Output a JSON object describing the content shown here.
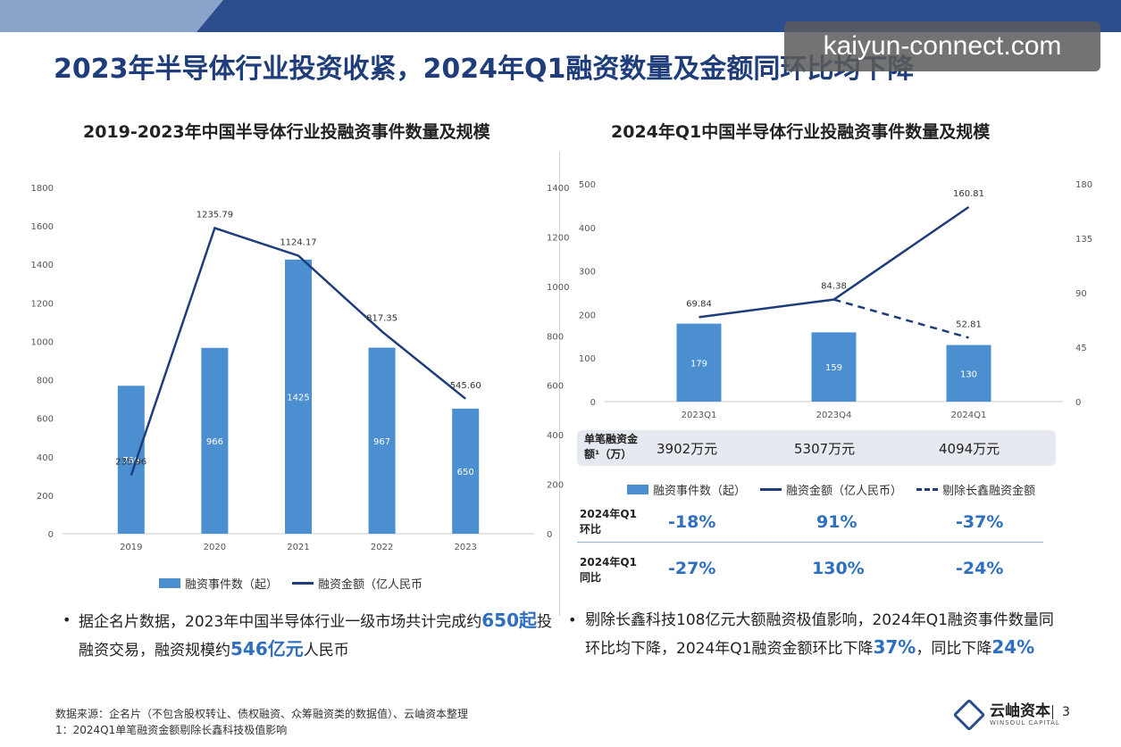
{
  "header": {
    "title": "2023年半导体行业投资收紧，2024年Q1融资数量及金额同环比均下降",
    "watermark_url": "kaiyun-connect.com"
  },
  "left_chart_title": "2019-2023年中国半导体行业投融资事件数量及规模",
  "right_chart_title": "2024年Q1中国半导体行业投融资事件数量及规模",
  "chart_data": [
    {
      "type": "bar",
      "title": "2019-2023年中国半导体行业投融资事件数量及规模",
      "categories": [
        "2019",
        "2020",
        "2021",
        "2022",
        "2023"
      ],
      "series": [
        {
          "name": "融资事件数（起）",
          "type": "bar",
          "axis": "left",
          "values": [
            769,
            966,
            1425,
            967,
            650
          ],
          "labels": [
            "769",
            "966",
            "1425",
            "967",
            "650"
          ]
        },
        {
          "name": "融资金额（亿人民币",
          "type": "line",
          "axis": "right",
          "values": [
            235.96,
            1235.79,
            1124.17,
            817.35,
            545.6
          ],
          "labels": [
            "235.96",
            "1235.79",
            "1124.17",
            "817.35",
            "545.60"
          ]
        }
      ],
      "y_left_ticks": [
        "0",
        "200",
        "400",
        "600",
        "800",
        "1000",
        "1200",
        "1400",
        "1600",
        "1800"
      ],
      "y_left_lim": [
        0,
        1800
      ],
      "y_right_ticks": [
        "0",
        "200",
        "400",
        "600",
        "800",
        "1000",
        "1200",
        "1400"
      ],
      "y_right_lim": [
        0,
        1400
      ],
      "legend": {
        "bar": "融资事件数（起）",
        "line": "融资金额（亿人民币"
      },
      "colors": {
        "bar": "#4b8fd0",
        "line": "#1e3d7a"
      }
    },
    {
      "type": "bar",
      "title": "2024年Q1中国半导体行业投融资事件数量及规模",
      "categories": [
        "2023Q1",
        "2023Q4",
        "2024Q1"
      ],
      "series": [
        {
          "name": "融资事件数（起）",
          "type": "bar",
          "axis": "left",
          "values": [
            179,
            159,
            130
          ],
          "labels": [
            "179",
            "159",
            "130"
          ]
        },
        {
          "name": "融资金额（亿人民币）",
          "type": "line",
          "axis": "right",
          "values": [
            69.84,
            84.38,
            160.81
          ],
          "labels": [
            "69.84",
            "84.38",
            "160.81"
          ]
        },
        {
          "name": "剔除长鑫融资金额",
          "type": "line-dashed",
          "axis": "right",
          "x": [
            "2023Q4",
            "2024Q1"
          ],
          "values": [
            84.38,
            52.81
          ],
          "labels": [
            "",
            "52.81"
          ]
        }
      ],
      "y_left_ticks": [
        "0",
        "100",
        "200",
        "300",
        "400",
        "500"
      ],
      "y_left_lim": [
        0,
        500
      ],
      "y_right_ticks": [
        "0",
        "45",
        "90",
        "135",
        "180"
      ],
      "y_right_lim": [
        0,
        180
      ],
      "per_deal": {
        "label": "单笔融资金额¹（万）",
        "values": [
          "3902万元",
          "5307万元",
          "4094万元"
        ]
      },
      "legend": {
        "bar": "融资事件数（起）",
        "line": "融资金额（亿人民币）",
        "dashed": "剔除长鑫融资金额"
      },
      "growth": [
        {
          "label": "2024年Q1环比",
          "values": [
            "-18%",
            "91%",
            "-37%"
          ]
        },
        {
          "label": "2024年Q1同比",
          "values": [
            "-27%",
            "130%",
            "-24%"
          ]
        }
      ]
    }
  ],
  "left_note": {
    "bullet": "•",
    "p1": "据企名片数据，2023年中国半导体行业一级市场共计完成约",
    "hl1": "650起",
    "p2": "投融资交易，融资规模约",
    "hl2": "546亿元",
    "p3": "人民币"
  },
  "right_note": {
    "bullet": "•",
    "p1": "剔除长鑫科技108亿元大额融资极值影响，2024年Q1融资事件数量同环比均下降，2024年Q1融资金额环比下降",
    "hl1": "37%",
    "p2": "，同比下降",
    "hl2": "24%"
  },
  "footer": {
    "source": "数据来源：企名片（不包含股权转让、债权融资、众筹融资类的数据值）、云岫资本整理",
    "note1": "1：2024Q1单笔融资金额剔除长鑫科技极值影响",
    "logo_name": "云岫资本",
    "logo_en": "WINSOUL CAPITAL",
    "page": "3"
  }
}
